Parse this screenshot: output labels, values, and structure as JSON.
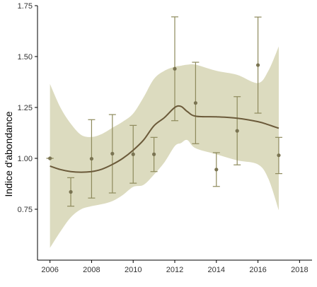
{
  "chart_data": {
    "type": "scatter",
    "xlabel": "",
    "ylabel": "Indice d'abondance",
    "xlim": [
      2005.4,
      2018.6
    ],
    "ylim": [
      0.5,
      1.75
    ],
    "x_ticks": [
      2006,
      2008,
      2010,
      2012,
      2014,
      2016,
      2018
    ],
    "x_tick_labels": [
      "2006",
      "2008",
      "2010",
      "2012",
      "2014",
      "2016",
      "2018"
    ],
    "y_ticks": [
      0.75,
      1.0,
      1.25,
      1.5,
      1.75
    ],
    "y_tick_labels": [
      "0.75",
      "1.00",
      "1.25",
      "1.50",
      "1.75"
    ],
    "grid": false,
    "points": [
      {
        "x": 2006,
        "y": 1.0,
        "ymin": 1.0,
        "ymax": 1.0
      },
      {
        "x": 2007,
        "y": 0.835,
        "ymin": 0.765,
        "ymax": 0.905
      },
      {
        "x": 2008,
        "y": 0.998,
        "ymin": 0.805,
        "ymax": 1.19
      },
      {
        "x": 2009,
        "y": 1.023,
        "ymin": 0.83,
        "ymax": 1.215
      },
      {
        "x": 2010,
        "y": 1.02,
        "ymin": 0.878,
        "ymax": 1.162
      },
      {
        "x": 2011,
        "y": 1.02,
        "ymin": 0.935,
        "ymax": 1.103
      },
      {
        "x": 2012,
        "y": 1.44,
        "ymin": 1.185,
        "ymax": 1.695
      },
      {
        "x": 2013,
        "y": 1.272,
        "ymin": 1.072,
        "ymax": 1.472
      },
      {
        "x": 2014,
        "y": 0.945,
        "ymin": 0.862,
        "ymax": 1.028
      },
      {
        "x": 2015,
        "y": 1.135,
        "ymin": 0.968,
        "ymax": 1.303
      },
      {
        "x": 2016,
        "y": 1.458,
        "ymin": 1.222,
        "ymax": 1.694
      },
      {
        "x": 2017,
        "y": 1.015,
        "ymin": 0.925,
        "ymax": 1.103
      }
    ],
    "trend": {
      "x": [
        2006,
        2006.5,
        2007,
        2007.5,
        2008,
        2008.5,
        2009,
        2009.5,
        2010,
        2010.5,
        2011,
        2011.5,
        2012,
        2012.3,
        2012.6,
        2013,
        2014,
        2015,
        2016,
        2016.5,
        2017
      ],
      "y": [
        0.962,
        0.945,
        0.935,
        0.932,
        0.935,
        0.947,
        0.97,
        1.0,
        1.04,
        1.09,
        1.16,
        1.2,
        1.25,
        1.255,
        1.23,
        1.207,
        1.204,
        1.197,
        1.18,
        1.165,
        1.148
      ],
      "lower": [
        0.56,
        0.64,
        0.71,
        0.75,
        0.765,
        0.775,
        0.79,
        0.82,
        0.86,
        0.87,
        0.92,
        0.98,
        1.06,
        1.075,
        1.09,
        1.05,
        1.02,
        0.99,
        0.97,
        0.9,
        0.745
      ],
      "upper": [
        1.365,
        1.25,
        1.17,
        1.115,
        1.105,
        1.12,
        1.15,
        1.18,
        1.22,
        1.3,
        1.39,
        1.43,
        1.45,
        1.455,
        1.46,
        1.46,
        1.43,
        1.41,
        1.37,
        1.43,
        1.55
      ]
    },
    "colors": {
      "ribbon": "#dcdbbf",
      "trend": "#6b5a3a",
      "point": "#7a7452",
      "errorbar": "#8e8a5c"
    }
  }
}
